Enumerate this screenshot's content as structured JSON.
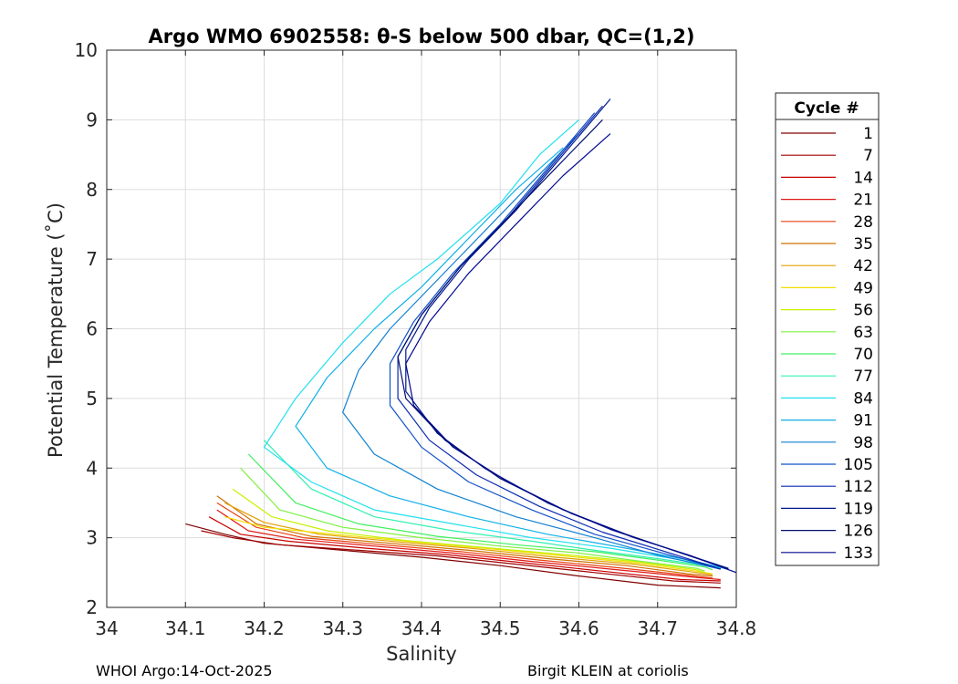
{
  "chart_data": {
    "type": "line",
    "title": "Argo WMO 6902558: θ-S below 500 dbar,  QC=(1,2)",
    "xlabel": "Salinity",
    "ylabel": "Potential Temperature (˚C)",
    "xlim": [
      34.0,
      34.8
    ],
    "ylim": [
      2,
      10
    ],
    "xticks": [
      34,
      34.1,
      34.2,
      34.3,
      34.4,
      34.5,
      34.6,
      34.7,
      34.8
    ],
    "xtick_labels": [
      "34",
      "34.1",
      "34.2",
      "34.3",
      "34.4",
      "34.5",
      "34.6",
      "34.7",
      "34.8"
    ],
    "yticks": [
      2,
      3,
      4,
      5,
      6,
      7,
      8,
      9,
      10
    ],
    "ytick_labels": [
      "2",
      "3",
      "4",
      "5",
      "6",
      "7",
      "8",
      "9",
      "10"
    ],
    "grid": true,
    "legend_title": "Cycle #",
    "legend_position": "right-outside",
    "legend": [
      {
        "label": "1",
        "color": "#800000"
      },
      {
        "label": "7",
        "color": "#a00000"
      },
      {
        "label": "14",
        "color": "#c80000"
      },
      {
        "label": "21",
        "color": "#e01818"
      },
      {
        "label": "28",
        "color": "#e84010"
      },
      {
        "label": "35",
        "color": "#d07000"
      },
      {
        "label": "42",
        "color": "#e0a000"
      },
      {
        "label": "49",
        "color": "#f0e000"
      },
      {
        "label": "56",
        "color": "#c8f000"
      },
      {
        "label": "63",
        "color": "#80f040"
      },
      {
        "label": "70",
        "color": "#40f060"
      },
      {
        "label": "77",
        "color": "#30f0b0"
      },
      {
        "label": "84",
        "color": "#20e0f0"
      },
      {
        "label": "91",
        "color": "#10b0e8"
      },
      {
        "label": "98",
        "color": "#1080d0"
      },
      {
        "label": "105",
        "color": "#1050c8"
      },
      {
        "label": "112",
        "color": "#0828b0"
      },
      {
        "label": "119",
        "color": "#001890"
      },
      {
        "label": "126",
        "color": "#001070"
      },
      {
        "label": "133",
        "color": "#000890"
      }
    ],
    "series": [
      {
        "name": "1",
        "color": "#800000",
        "x": [
          34.1,
          34.15,
          34.2,
          34.3,
          34.4,
          34.5,
          34.6,
          34.7,
          34.78
        ],
        "y": [
          3.2,
          3.05,
          2.92,
          2.82,
          2.72,
          2.6,
          2.45,
          2.32,
          2.28
        ]
      },
      {
        "name": "7",
        "color": "#a00000",
        "x": [
          34.12,
          34.16,
          34.22,
          34.32,
          34.42,
          34.52,
          34.62,
          34.72,
          34.78
        ],
        "y": [
          3.1,
          3.0,
          2.9,
          2.82,
          2.74,
          2.62,
          2.5,
          2.38,
          2.35
        ]
      },
      {
        "name": "14",
        "color": "#c80000",
        "x": [
          34.13,
          34.17,
          34.23,
          34.33,
          34.43,
          34.53,
          34.63,
          34.73,
          34.78
        ],
        "y": [
          3.3,
          3.05,
          2.95,
          2.85,
          2.76,
          2.64,
          2.52,
          2.4,
          2.38
        ]
      },
      {
        "name": "21",
        "color": "#e01818",
        "x": [
          34.14,
          34.18,
          34.24,
          34.34,
          34.44,
          34.54,
          34.64,
          34.74,
          34.78
        ],
        "y": [
          3.4,
          3.1,
          2.98,
          2.88,
          2.78,
          2.66,
          2.55,
          2.44,
          2.4
        ]
      },
      {
        "name": "28",
        "color": "#e84010",
        "x": [
          34.14,
          34.19,
          34.25,
          34.35,
          34.45,
          34.55,
          34.65,
          34.74,
          34.77
        ],
        "y": [
          3.5,
          3.15,
          3.0,
          2.9,
          2.8,
          2.68,
          2.57,
          2.46,
          2.42
        ]
      },
      {
        "name": "35",
        "color": "#d07000",
        "x": [
          34.14,
          34.19,
          34.26,
          34.36,
          34.46,
          34.56,
          34.66,
          34.74,
          34.77
        ],
        "y": [
          3.6,
          3.2,
          3.02,
          2.92,
          2.82,
          2.7,
          2.6,
          2.48,
          2.45
        ]
      },
      {
        "name": "42",
        "color": "#e0a000",
        "x": [
          34.15,
          34.2,
          34.27,
          34.37,
          34.47,
          34.57,
          34.67,
          34.75,
          34.77
        ],
        "y": [
          3.5,
          3.22,
          3.05,
          2.94,
          2.84,
          2.72,
          2.62,
          2.5,
          2.47
        ]
      },
      {
        "name": "49",
        "color": "#f0e000",
        "x": [
          34.15,
          34.2,
          34.28,
          34.38,
          34.48,
          34.58,
          34.68,
          34.75,
          34.77
        ],
        "y": [
          3.3,
          3.15,
          3.06,
          2.95,
          2.85,
          2.74,
          2.63,
          2.52,
          2.48
        ]
      },
      {
        "name": "56",
        "color": "#c8f000",
        "x": [
          34.16,
          34.21,
          34.28,
          34.38,
          34.48,
          34.58,
          34.68,
          34.75,
          34.76
        ],
        "y": [
          3.7,
          3.3,
          3.1,
          2.96,
          2.86,
          2.76,
          2.65,
          2.54,
          2.5
        ]
      },
      {
        "name": "63",
        "color": "#80f040",
        "x": [
          34.17,
          34.22,
          34.3,
          34.4,
          34.5,
          34.6,
          34.68,
          34.75,
          34.76
        ],
        "y": [
          4.0,
          3.4,
          3.15,
          3.0,
          2.88,
          2.78,
          2.66,
          2.56,
          2.52
        ]
      },
      {
        "name": "70",
        "color": "#40f060",
        "x": [
          34.18,
          34.24,
          34.32,
          34.42,
          34.52,
          34.62,
          34.7,
          34.76,
          34.77
        ],
        "y": [
          4.2,
          3.5,
          3.2,
          3.02,
          2.9,
          2.8,
          2.68,
          2.58,
          2.54
        ]
      },
      {
        "name": "77",
        "color": "#30f0b0",
        "x": [
          34.2,
          34.26,
          34.34,
          34.44,
          34.54,
          34.62,
          34.7,
          34.76,
          34.78
        ],
        "y": [
          4.4,
          3.7,
          3.3,
          3.1,
          2.95,
          2.82,
          2.7,
          2.6,
          2.56
        ]
      },
      {
        "name": "84",
        "color": "#20e0f0",
        "x": [
          34.6,
          34.55,
          34.5,
          34.42,
          34.36,
          34.3,
          34.24,
          34.2,
          34.26,
          34.34,
          34.44,
          34.54,
          34.64,
          34.72,
          34.79
        ],
        "y": [
          9.0,
          8.5,
          7.8,
          7.0,
          6.5,
          5.8,
          5.0,
          4.3,
          3.8,
          3.4,
          3.2,
          3.0,
          2.85,
          2.7,
          2.55
        ]
      },
      {
        "name": "91",
        "color": "#10b0e8",
        "x": [
          34.58,
          34.52,
          34.46,
          34.4,
          34.34,
          34.28,
          34.24,
          34.28,
          34.36,
          34.46,
          34.56,
          34.66,
          34.74,
          34.79
        ],
        "y": [
          8.6,
          8.0,
          7.3,
          6.6,
          6.0,
          5.3,
          4.6,
          4.0,
          3.6,
          3.3,
          3.05,
          2.85,
          2.68,
          2.55
        ]
      },
      {
        "name": "98",
        "color": "#1080d0",
        "x": [
          34.6,
          34.54,
          34.48,
          34.42,
          34.36,
          34.32,
          34.3,
          34.34,
          34.42,
          34.52,
          34.62,
          34.7,
          34.78
        ],
        "y": [
          8.8,
          8.1,
          7.4,
          6.7,
          6.0,
          5.4,
          4.8,
          4.2,
          3.7,
          3.3,
          3.0,
          2.75,
          2.55
        ]
      },
      {
        "name": "105",
        "color": "#1050c8",
        "x": [
          34.62,
          34.56,
          34.5,
          34.44,
          34.39,
          34.36,
          34.36,
          34.4,
          34.46,
          34.54,
          34.62,
          34.7,
          34.78
        ],
        "y": [
          9.1,
          8.3,
          7.5,
          6.8,
          6.1,
          5.5,
          4.9,
          4.3,
          3.8,
          3.4,
          3.05,
          2.8,
          2.55
        ]
      },
      {
        "name": "112",
        "color": "#0828b0",
        "x": [
          34.63,
          34.57,
          34.51,
          34.45,
          34.4,
          34.37,
          34.37,
          34.41,
          34.47,
          34.55,
          34.63,
          34.71,
          34.78
        ],
        "y": [
          9.2,
          8.4,
          7.6,
          6.9,
          6.2,
          5.6,
          5.0,
          4.4,
          3.9,
          3.45,
          3.08,
          2.8,
          2.55
        ]
      },
      {
        "name": "119",
        "color": "#001890",
        "x": [
          34.64,
          34.58,
          34.52,
          34.46,
          34.41,
          34.38,
          34.38,
          34.42,
          34.48,
          34.56,
          34.64,
          34.72,
          34.79
        ],
        "y": [
          9.3,
          8.5,
          7.7,
          7.0,
          6.3,
          5.7,
          5.1,
          4.5,
          4.0,
          3.5,
          3.12,
          2.82,
          2.56
        ]
      },
      {
        "name": "126",
        "color": "#001070",
        "x": [
          34.63,
          34.57,
          34.51,
          34.45,
          34.4,
          34.37,
          34.38,
          34.43,
          34.5,
          34.58,
          34.66,
          34.73,
          34.79
        ],
        "y": [
          9.0,
          8.3,
          7.6,
          6.9,
          6.2,
          5.6,
          5.0,
          4.4,
          3.85,
          3.4,
          3.05,
          2.78,
          2.55
        ]
      },
      {
        "name": "133",
        "color": "#000890",
        "x": [
          34.64,
          34.58,
          34.52,
          34.46,
          34.41,
          34.38,
          34.39,
          34.44,
          34.51,
          34.59,
          34.67,
          34.74,
          34.8
        ],
        "y": [
          8.8,
          8.2,
          7.5,
          6.8,
          6.1,
          5.5,
          4.9,
          4.3,
          3.8,
          3.35,
          3.0,
          2.75,
          2.5
        ]
      }
    ]
  },
  "footer": {
    "left": "WHOI Argo:14-Oct-2025",
    "right": "Birgit KLEIN at coriolis"
  }
}
